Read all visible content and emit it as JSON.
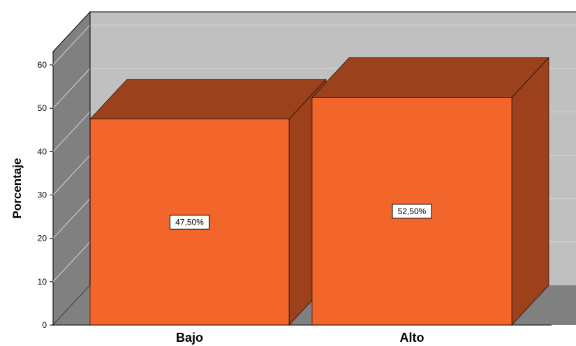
{
  "chart_data": {
    "type": "bar",
    "style": "3d",
    "categories": [
      "Bajo",
      "Alto"
    ],
    "values": [
      47.5,
      52.5
    ],
    "data_labels": [
      "47,50%",
      "52,50%"
    ],
    "title": "",
    "xlabel": "",
    "ylabel": "Porcentaje",
    "ylim": [
      0,
      60
    ],
    "yticks": [
      0,
      10,
      20,
      30,
      40,
      50,
      60
    ],
    "grid": true,
    "legend": "none",
    "colors": {
      "bar_front": "#F2662B",
      "bar_side": "#9D401C",
      "bar_top": "#9B411C",
      "back_wall": "#C0C0C0",
      "side_wall": "#808080",
      "floor": "#808080",
      "grid": "#D6D6D6"
    }
  }
}
